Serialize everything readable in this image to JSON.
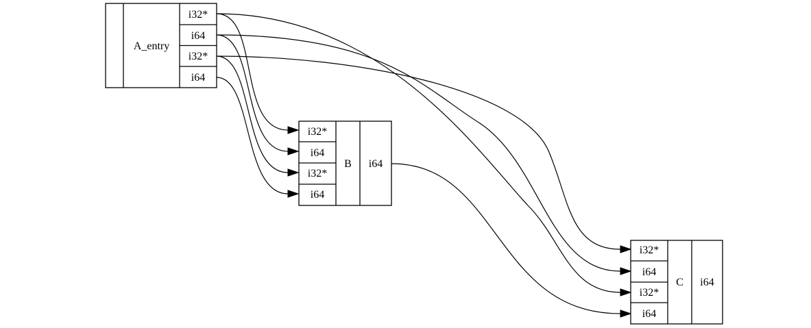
{
  "nodes": {
    "a_entry": {
      "label": "A_entry",
      "first_cell": "",
      "outputs": [
        "i32*",
        "i64",
        "i32*",
        "i64"
      ]
    },
    "b": {
      "label": "B",
      "inputs": [
        "i32*",
        "i64",
        "i32*",
        "i64"
      ],
      "output": "i64"
    },
    "c": {
      "label": "C",
      "inputs": [
        "i32*",
        "i64",
        "i32*",
        "i64"
      ],
      "output": "i64"
    }
  },
  "edges": [
    {
      "from": "A_entry.out0",
      "to": "B.in0"
    },
    {
      "from": "A_entry.out1",
      "to": "B.in1"
    },
    {
      "from": "A_entry.out2",
      "to": "B.in2"
    },
    {
      "from": "A_entry.out3",
      "to": "B.in3"
    },
    {
      "from": "A_entry.out0",
      "to": "C.in2"
    },
    {
      "from": "A_entry.out1",
      "to": "C.in1"
    },
    {
      "from": "A_entry.out2",
      "to": "C.in0"
    },
    {
      "from": "B.out",
      "to": "C.in3"
    }
  ]
}
